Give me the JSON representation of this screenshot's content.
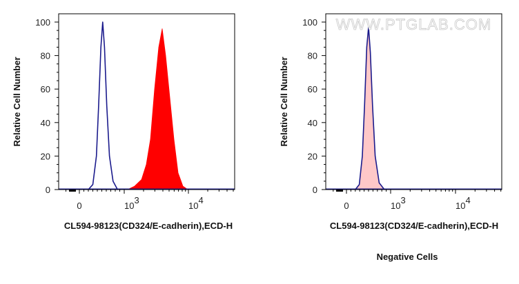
{
  "chart_data": [
    {
      "type": "area",
      "ylabel": "Relative Cell Number",
      "xlabel": "CL594-98123(CD324/E-cadherin),ECD-H",
      "ylim": [
        0,
        100
      ],
      "yticks": [
        "0",
        "20",
        "40",
        "60",
        "80",
        "100"
      ],
      "xticks": [
        {
          "value": 0,
          "label": "0",
          "exp": ""
        },
        {
          "value": 1000,
          "label": "10",
          "exp": "3"
        },
        {
          "value": 10000,
          "label": "10",
          "exp": "4"
        }
      ],
      "xscale": "biexponential",
      "grid": false,
      "caption": "",
      "watermark": "",
      "series": [
        {
          "style": "outline",
          "color": "#1a1a8c",
          "x": [
            200,
            300,
            380,
            430,
            480,
            520,
            560,
            610,
            670,
            750,
            850
          ],
          "y": [
            0,
            3,
            20,
            50,
            85,
            100,
            85,
            50,
            20,
            5,
            0
          ]
        },
        {
          "style": "filled",
          "color": "#ff0000",
          "fill": "#ff0000",
          "x": [
            1130,
            1450,
            1860,
            2210,
            2560,
            2970,
            3450,
            3900,
            4420,
            5120,
            5950,
            6890,
            8200,
            9770
          ],
          "y": [
            0,
            2,
            6,
            15,
            30,
            60,
            85,
            96,
            80,
            55,
            30,
            10,
            2,
            0
          ]
        }
      ]
    },
    {
      "type": "area",
      "ylabel": "Relative Cell Number",
      "xlabel": "CL594-98123(CD324/E-cadherin),ECD-H",
      "ylim": [
        0,
        100
      ],
      "yticks": [
        "0",
        "20",
        "40",
        "60",
        "80",
        "100"
      ],
      "xticks": [
        {
          "value": 0,
          "label": "0",
          "exp": ""
        },
        {
          "value": 1000,
          "label": "10",
          "exp": "3"
        },
        {
          "value": 10000,
          "label": "10",
          "exp": "4"
        }
      ],
      "xscale": "biexponential",
      "grid": false,
      "caption": "Negative Cells",
      "watermark": "WWW.PTGLAB.COM",
      "series": [
        {
          "style": "filled",
          "color": "#ffc8c8",
          "fill": "#ffc8c8",
          "x": [
            200,
            290,
            360,
            410,
            460,
            500,
            540,
            590,
            650,
            740,
            860
          ],
          "y": [
            0,
            3,
            20,
            50,
            85,
            95,
            80,
            50,
            20,
            4,
            0
          ]
        },
        {
          "style": "outline",
          "color": "#1a1a8c",
          "x": [
            200,
            290,
            360,
            410,
            460,
            500,
            540,
            590,
            650,
            740,
            860
          ],
          "y": [
            0,
            3,
            20,
            50,
            85,
            97,
            82,
            50,
            20,
            4,
            0
          ]
        }
      ]
    }
  ]
}
